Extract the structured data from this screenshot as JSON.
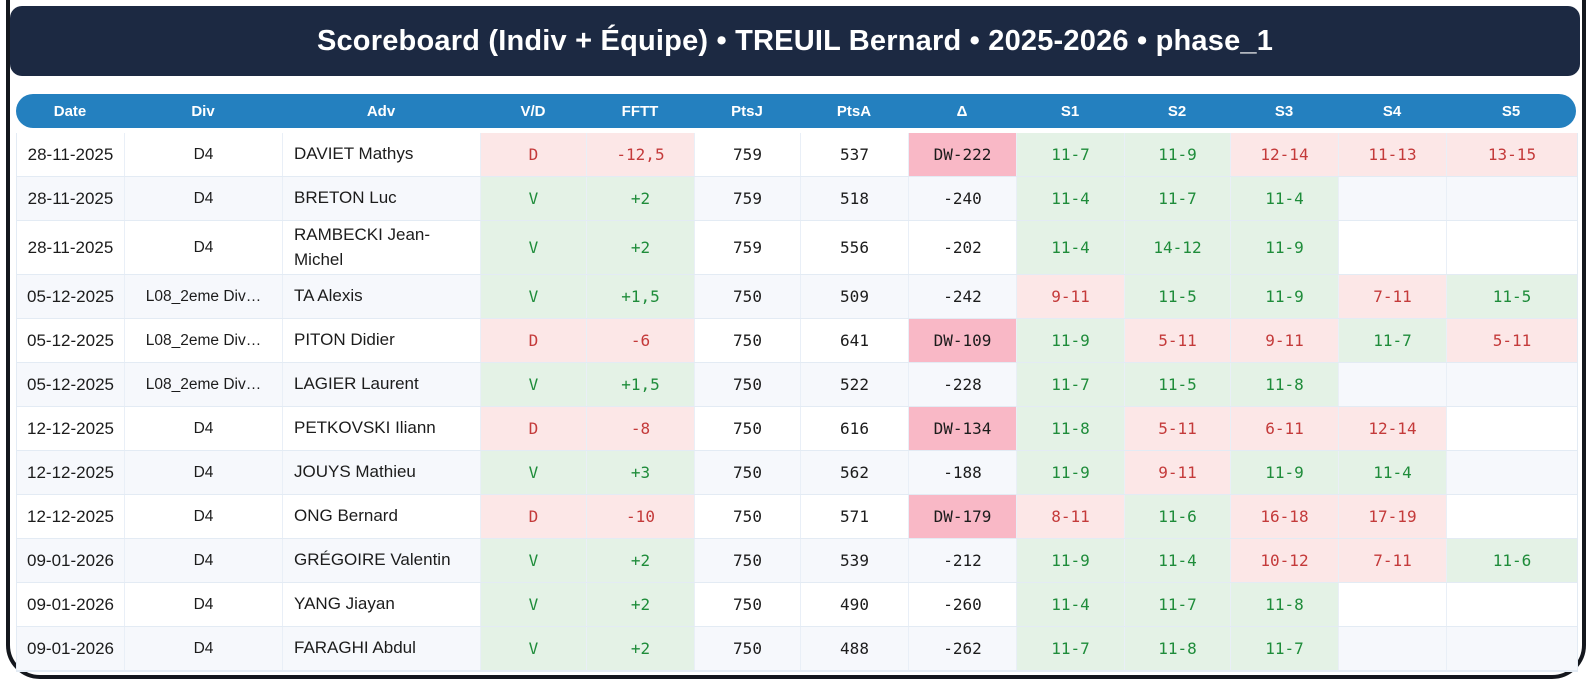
{
  "title": "Scoreboard (Indiv + Équipe) • TREUIL Bernard • 2025-2026 • phase_1",
  "colors": {
    "title_bar_bg": "#1c2942",
    "header_bg": "#2480bf",
    "win_text": "#1e8c3a",
    "win_bg": "#e4f2e6",
    "loss_text": "#c43a3a",
    "loss_bg": "#fce7e7",
    "defeat_walkover_bg": "#f9b8c6",
    "row_stripe_bg": "#f6f8fc"
  },
  "table": {
    "columns": [
      "Date",
      "Div",
      "Adv",
      "V/D",
      "FFTT",
      "PtsJ",
      "PtsA",
      "Δ",
      "S1",
      "S2",
      "S3",
      "S4",
      "S5"
    ],
    "rows": [
      {
        "date": "28-11-2025",
        "div": "D4",
        "adv": "DAVIET Mathys",
        "vd": "D",
        "result": "loss",
        "fftt": "-12,5",
        "ptsj": "759",
        "ptsa": "537",
        "delta": "DW-222",
        "delta_dw": true,
        "sets": [
          {
            "v": "11-7",
            "r": "w"
          },
          {
            "v": "11-9",
            "r": "w"
          },
          {
            "v": "12-14",
            "r": "l"
          },
          {
            "v": "11-13",
            "r": "l"
          },
          {
            "v": "13-15",
            "r": "l"
          }
        ]
      },
      {
        "date": "28-11-2025",
        "div": "D4",
        "adv": "BRETON Luc",
        "vd": "V",
        "result": "win",
        "fftt": "+2",
        "ptsj": "759",
        "ptsa": "518",
        "delta": "-240",
        "delta_dw": false,
        "sets": [
          {
            "v": "11-4",
            "r": "w"
          },
          {
            "v": "11-7",
            "r": "w"
          },
          {
            "v": "11-4",
            "r": "w"
          },
          {
            "v": "",
            "r": ""
          },
          {
            "v": "",
            "r": ""
          }
        ]
      },
      {
        "date": "28-11-2025",
        "div": "D4",
        "adv": "RAMBECKI Jean-Michel",
        "vd": "V",
        "result": "win",
        "fftt": "+2",
        "ptsj": "759",
        "ptsa": "556",
        "delta": "-202",
        "delta_dw": false,
        "sets": [
          {
            "v": "11-4",
            "r": "w"
          },
          {
            "v": "14-12",
            "r": "w"
          },
          {
            "v": "11-9",
            "r": "w"
          },
          {
            "v": "",
            "r": ""
          },
          {
            "v": "",
            "r": ""
          }
        ]
      },
      {
        "date": "05-12-2025",
        "div": "L08_2eme Div…",
        "adv": "TA Alexis",
        "vd": "V",
        "result": "win",
        "fftt": "+1,5",
        "ptsj": "750",
        "ptsa": "509",
        "delta": "-242",
        "delta_dw": false,
        "sets": [
          {
            "v": "9-11",
            "r": "l"
          },
          {
            "v": "11-5",
            "r": "w"
          },
          {
            "v": "11-9",
            "r": "w"
          },
          {
            "v": "7-11",
            "r": "l"
          },
          {
            "v": "11-5",
            "r": "w"
          }
        ]
      },
      {
        "date": "05-12-2025",
        "div": "L08_2eme Div…",
        "adv": "PITON Didier",
        "vd": "D",
        "result": "loss",
        "fftt": "-6",
        "ptsj": "750",
        "ptsa": "641",
        "delta": "DW-109",
        "delta_dw": true,
        "sets": [
          {
            "v": "11-9",
            "r": "w"
          },
          {
            "v": "5-11",
            "r": "l"
          },
          {
            "v": "9-11",
            "r": "l"
          },
          {
            "v": "11-7",
            "r": "w"
          },
          {
            "v": "5-11",
            "r": "l"
          }
        ]
      },
      {
        "date": "05-12-2025",
        "div": "L08_2eme Div…",
        "adv": "LAGIER Laurent",
        "vd": "V",
        "result": "win",
        "fftt": "+1,5",
        "ptsj": "750",
        "ptsa": "522",
        "delta": "-228",
        "delta_dw": false,
        "sets": [
          {
            "v": "11-7",
            "r": "w"
          },
          {
            "v": "11-5",
            "r": "w"
          },
          {
            "v": "11-8",
            "r": "w"
          },
          {
            "v": "",
            "r": ""
          },
          {
            "v": "",
            "r": ""
          }
        ]
      },
      {
        "date": "12-12-2025",
        "div": "D4",
        "adv": "PETKOVSKI Iliann",
        "vd": "D",
        "result": "loss",
        "fftt": "-8",
        "ptsj": "750",
        "ptsa": "616",
        "delta": "DW-134",
        "delta_dw": true,
        "sets": [
          {
            "v": "11-8",
            "r": "w"
          },
          {
            "v": "5-11",
            "r": "l"
          },
          {
            "v": "6-11",
            "r": "l"
          },
          {
            "v": "12-14",
            "r": "l"
          },
          {
            "v": "",
            "r": ""
          }
        ]
      },
      {
        "date": "12-12-2025",
        "div": "D4",
        "adv": "JOUYS Mathieu",
        "vd": "V",
        "result": "win",
        "fftt": "+3",
        "ptsj": "750",
        "ptsa": "562",
        "delta": "-188",
        "delta_dw": false,
        "sets": [
          {
            "v": "11-9",
            "r": "w"
          },
          {
            "v": "9-11",
            "r": "l"
          },
          {
            "v": "11-9",
            "r": "w"
          },
          {
            "v": "11-4",
            "r": "w"
          },
          {
            "v": "",
            "r": ""
          }
        ]
      },
      {
        "date": "12-12-2025",
        "div": "D4",
        "adv": "ONG Bernard",
        "vd": "D",
        "result": "loss",
        "fftt": "-10",
        "ptsj": "750",
        "ptsa": "571",
        "delta": "DW-179",
        "delta_dw": true,
        "sets": [
          {
            "v": "8-11",
            "r": "l"
          },
          {
            "v": "11-6",
            "r": "w"
          },
          {
            "v": "16-18",
            "r": "l"
          },
          {
            "v": "17-19",
            "r": "l"
          },
          {
            "v": "",
            "r": ""
          }
        ]
      },
      {
        "date": "09-01-2026",
        "div": "D4",
        "adv": "GRÉGOIRE Valentin",
        "vd": "V",
        "result": "win",
        "fftt": "+2",
        "ptsj": "750",
        "ptsa": "539",
        "delta": "-212",
        "delta_dw": false,
        "sets": [
          {
            "v": "11-9",
            "r": "w"
          },
          {
            "v": "11-4",
            "r": "w"
          },
          {
            "v": "10-12",
            "r": "l"
          },
          {
            "v": "7-11",
            "r": "l"
          },
          {
            "v": "11-6",
            "r": "w"
          }
        ]
      },
      {
        "date": "09-01-2026",
        "div": "D4",
        "adv": "YANG Jiayan",
        "vd": "V",
        "result": "win",
        "fftt": "+2",
        "ptsj": "750",
        "ptsa": "490",
        "delta": "-260",
        "delta_dw": false,
        "sets": [
          {
            "v": "11-4",
            "r": "w"
          },
          {
            "v": "11-7",
            "r": "w"
          },
          {
            "v": "11-8",
            "r": "w"
          },
          {
            "v": "",
            "r": ""
          },
          {
            "v": "",
            "r": ""
          }
        ]
      },
      {
        "date": "09-01-2026",
        "div": "D4",
        "adv": "FARAGHI Abdul",
        "vd": "V",
        "result": "win",
        "fftt": "+2",
        "ptsj": "750",
        "ptsa": "488",
        "delta": "-262",
        "delta_dw": false,
        "sets": [
          {
            "v": "11-7",
            "r": "w"
          },
          {
            "v": "11-8",
            "r": "w"
          },
          {
            "v": "11-7",
            "r": "w"
          },
          {
            "v": "",
            "r": ""
          },
          {
            "v": "",
            "r": ""
          }
        ]
      }
    ]
  }
}
